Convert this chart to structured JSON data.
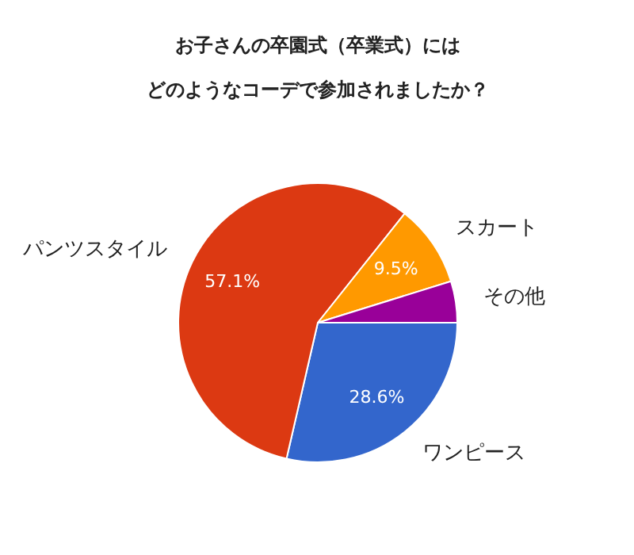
{
  "chart_data": {
    "type": "pie",
    "title": "お子さんの卒園式（卒業式）には",
    "subtitle": "どのようなコーデで参加されましたか？",
    "categories": [
      "ワンピース",
      "パンツスタイル",
      "スカート",
      "その他"
    ],
    "values": [
      28.6,
      57.1,
      9.5,
      4.8
    ],
    "colors": [
      "#3366cc",
      "#dc3912",
      "#ff9900",
      "#990099"
    ],
    "value_labels": [
      "28.6%",
      "57.1%",
      "9.5%",
      null
    ]
  }
}
